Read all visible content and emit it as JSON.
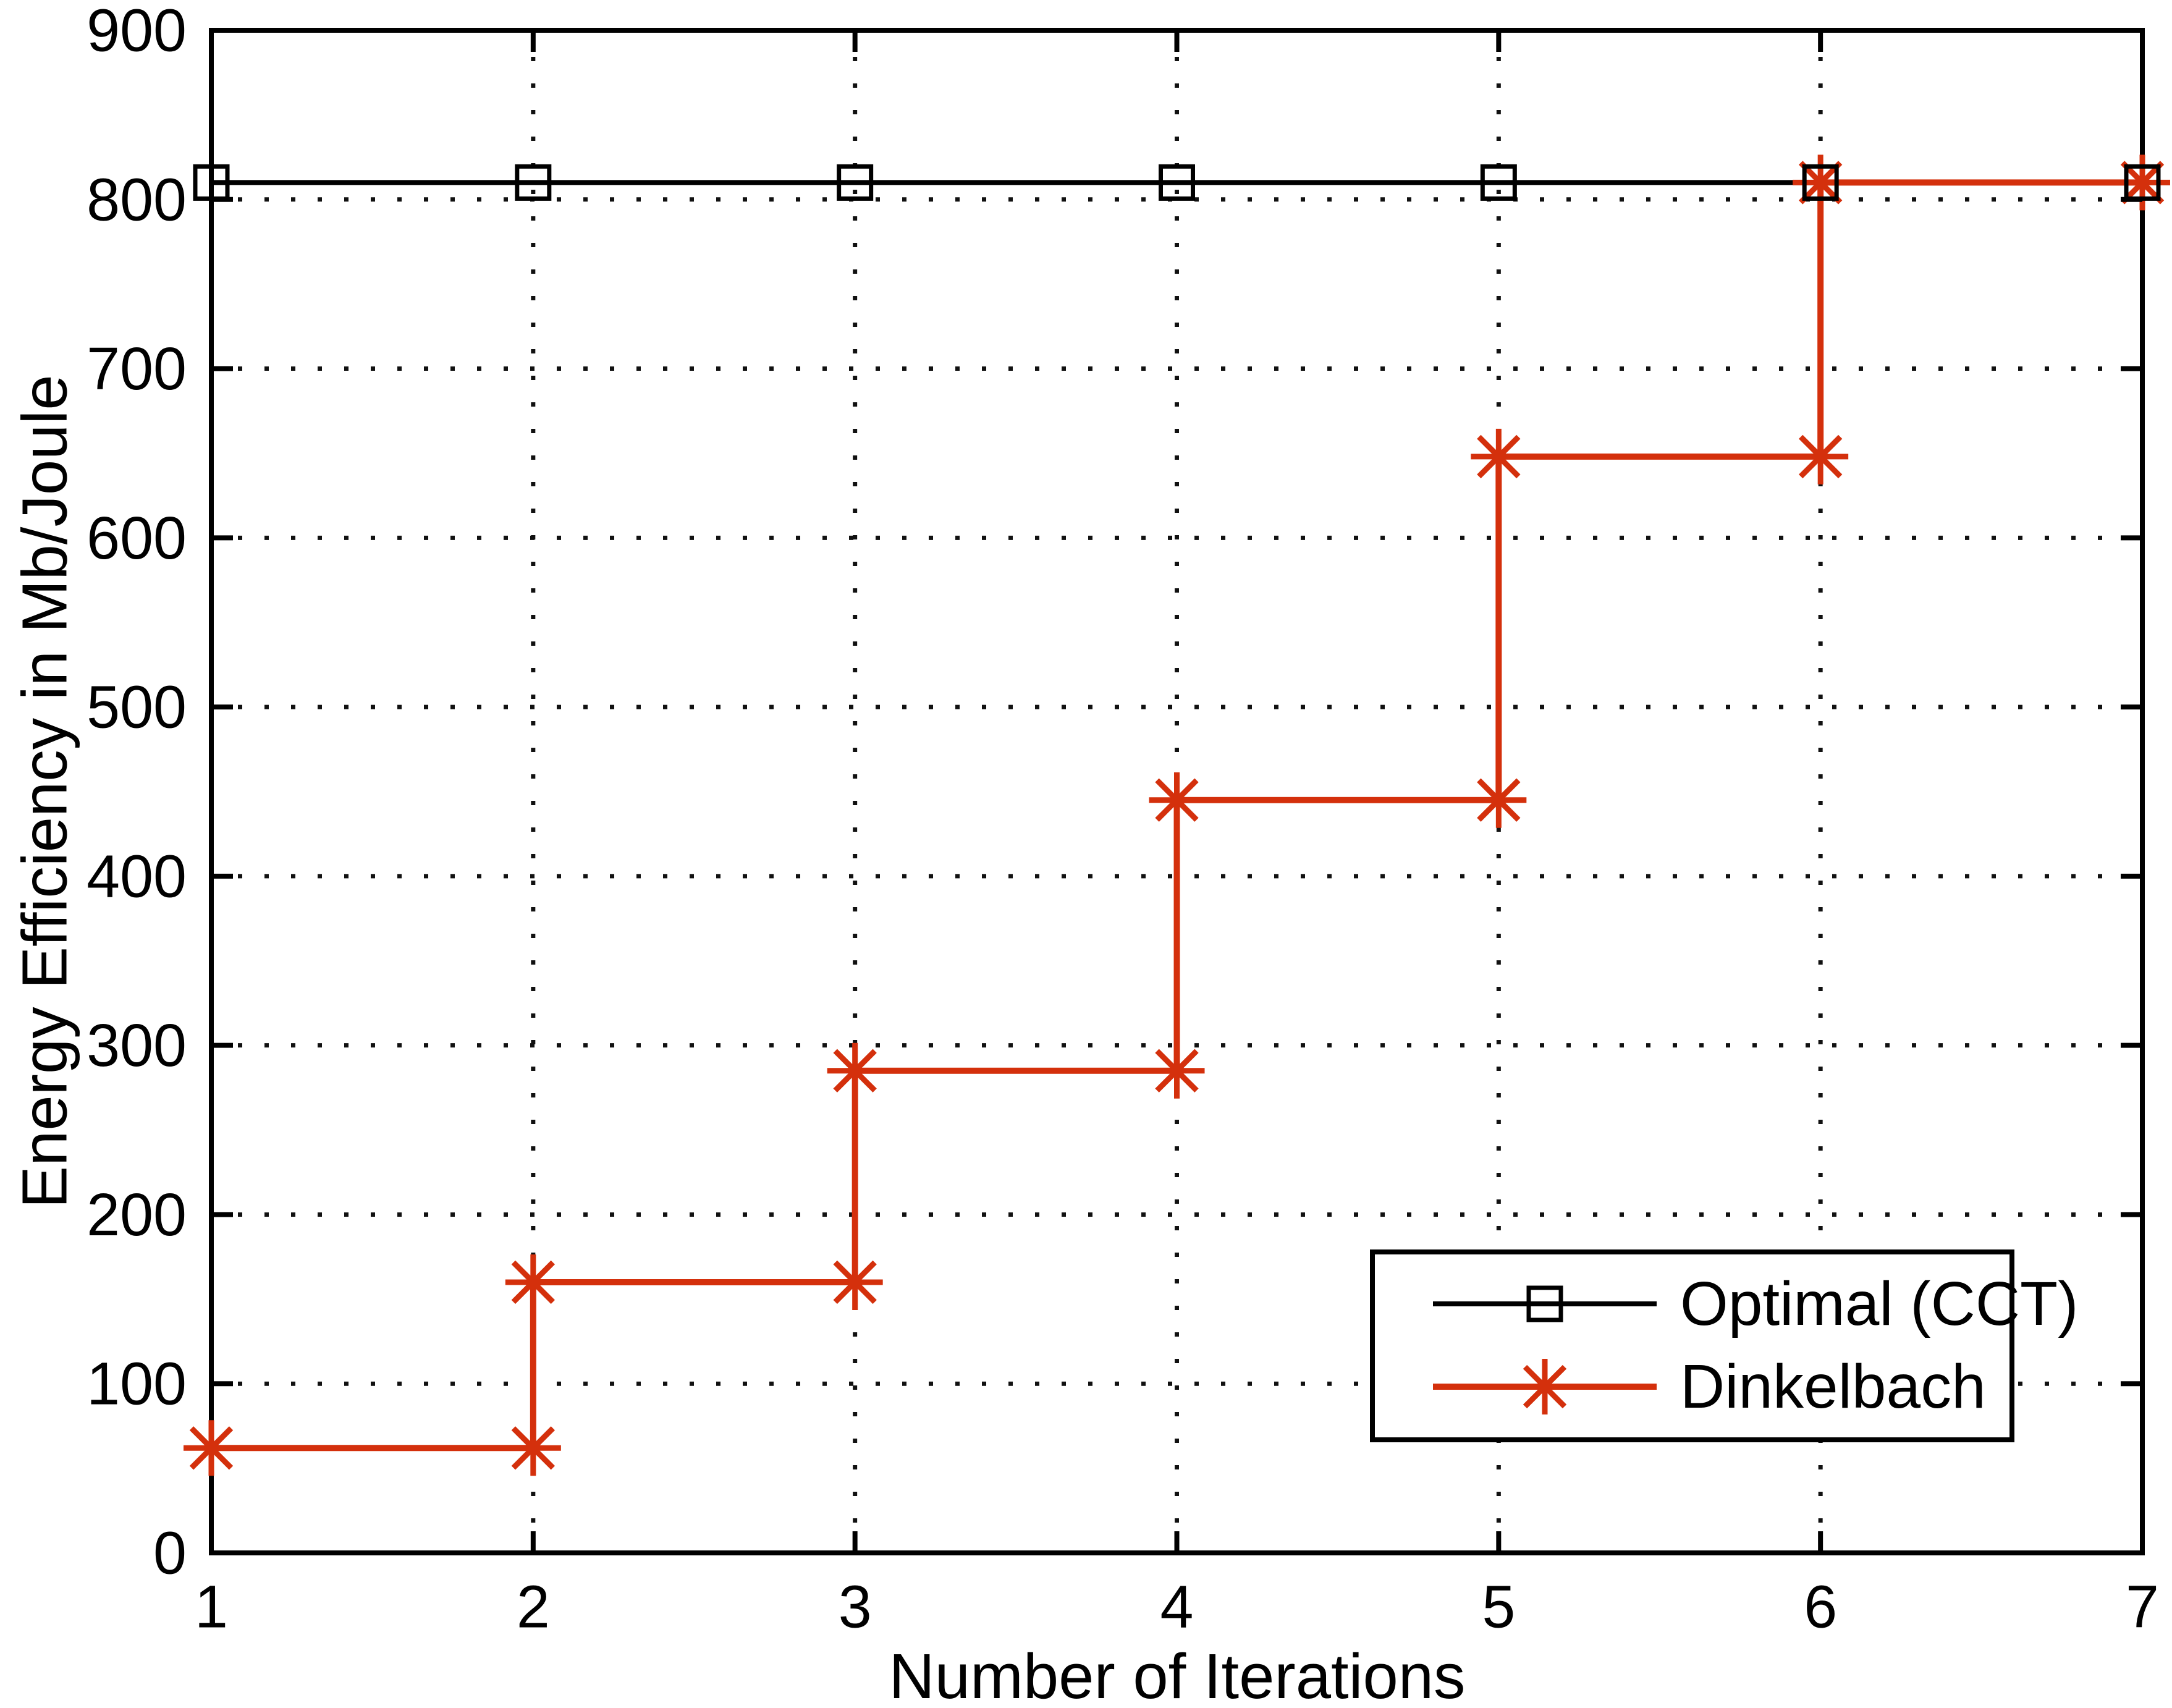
{
  "figure": {
    "background": "#ffffff"
  },
  "chart_data": {
    "type": "line",
    "title": "",
    "xlabel": "Number of Iterations",
    "ylabel": "Energy Efficiency in Mb/Joule",
    "xlim": [
      1,
      7
    ],
    "ylim": [
      0,
      900
    ],
    "xticks": [
      1,
      2,
      3,
      4,
      5,
      6,
      7
    ],
    "yticks": [
      0,
      100,
      200,
      300,
      400,
      500,
      600,
      700,
      800,
      900
    ],
    "xtick_labels": [
      "1",
      "2",
      "3",
      "4",
      "5",
      "6",
      "7"
    ],
    "ytick_labels": [
      "0",
      "100",
      "200",
      "300",
      "400",
      "500",
      "600",
      "700",
      "800",
      "900"
    ],
    "grid": {
      "visible": true,
      "style": "dotted",
      "color": "#111111"
    },
    "axis_color": "#000000",
    "legend": {
      "position": "lower-right",
      "background": "#ffffff",
      "border_color": "#000000"
    },
    "series": [
      {
        "name": "Optimal (CCT)",
        "color": "#000000",
        "marker": "square",
        "line_style": "solid",
        "x": [
          1,
          2,
          3,
          4,
          5,
          6,
          7
        ],
        "y": [
          810,
          810,
          810,
          810,
          810,
          810,
          810
        ]
      },
      {
        "name": "Dinkelbach",
        "color": "#d4300c",
        "marker": "asterisk",
        "line_style": "stairs",
        "x": [
          1,
          2,
          3,
          4,
          5,
          6,
          7
        ],
        "y": [
          62,
          160,
          285,
          445,
          648,
          810,
          810
        ]
      }
    ]
  }
}
